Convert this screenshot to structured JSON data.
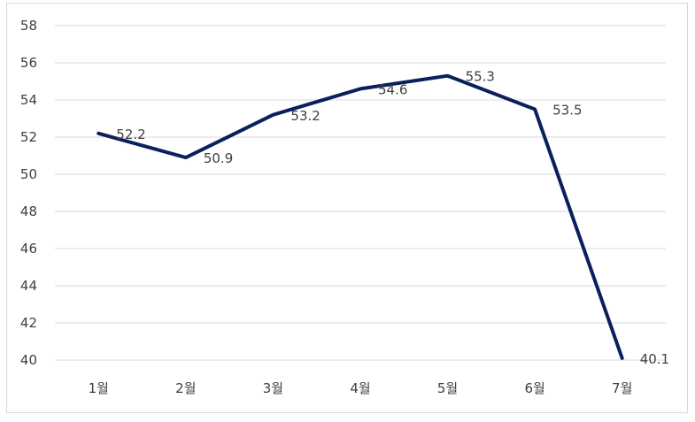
{
  "chart_data": {
    "type": "line",
    "categories": [
      "1월",
      "2월",
      "3월",
      "4월",
      "5월",
      "6월",
      "7월"
    ],
    "series": [
      {
        "values": [
          52.2,
          50.9,
          53.2,
          54.6,
          55.3,
          53.5,
          40.1
        ]
      }
    ],
    "data_labels": [
      "52.2",
      "50.9",
      "53.2",
      "54.6",
      "55.3",
      "53.5",
      "40.1"
    ],
    "ylim": [
      40,
      58
    ],
    "yticks": [
      40,
      42,
      44,
      46,
      48,
      50,
      52,
      54,
      56,
      58
    ],
    "ytick_labels": [
      "40",
      "42",
      "44",
      "46",
      "48",
      "50",
      "52",
      "54",
      "56",
      "58"
    ],
    "grid": true,
    "line_color": "#0b1f5c",
    "grid_color": "#d9d9d9"
  }
}
